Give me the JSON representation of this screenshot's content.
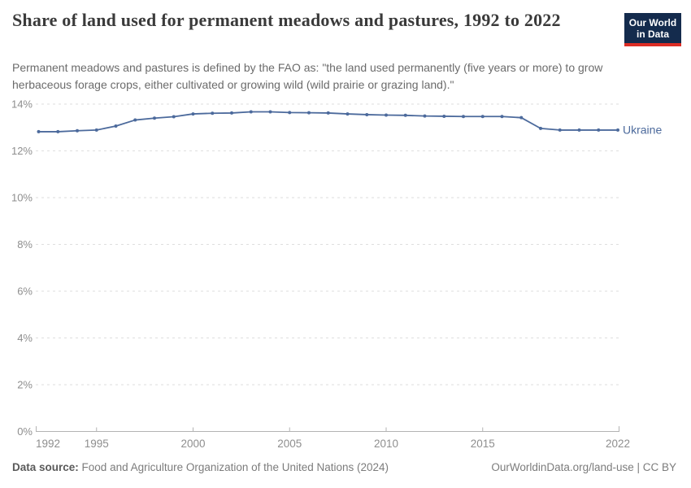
{
  "logo": {
    "line1": "Our World",
    "line2": "in Data",
    "bg_color": "#142b4d",
    "stripe_color": "#dc2d25"
  },
  "footer": {
    "datasource_label": "Data source:",
    "datasource_value": "Food and Agriculture Organization of the United Nations (2024)",
    "license": "OurWorldinData.org/land-use | CC BY"
  },
  "colors": {
    "series_blue": "#4c6a9c",
    "gridline": "#dedede",
    "axis_line": "#b3b3b3",
    "tick_label": "#8e8e8e",
    "title_text": "#3a3a3a",
    "subtitle_text": "#6b6b6b"
  },
  "chart_data": {
    "type": "line",
    "title": "Share of land used for permanent meadows and pastures, 1992 to 2022",
    "subtitle": "Permanent meadows and pastures is defined by the FAO as: \"the land used permanently (five years or more) to grow herbaceous forage crops, either cultivated or growing wild (wild prairie or grazing land).\"",
    "xlabel": "",
    "ylabel": "",
    "ylim": [
      0,
      14
    ],
    "xlim": [
      1992,
      2022
    ],
    "grid": "horizontal-dashed",
    "legend": "line-end-label",
    "x": [
      1992,
      1993,
      1994,
      1995,
      1996,
      1997,
      1998,
      1999,
      2000,
      2001,
      2002,
      2003,
      2004,
      2005,
      2006,
      2007,
      2008,
      2009,
      2010,
      2011,
      2012,
      2013,
      2014,
      2015,
      2016,
      2017,
      2018,
      2019,
      2020,
      2021,
      2022
    ],
    "series": [
      {
        "name": "Ukraine",
        "color": "#4c6a9c",
        "unit": "%",
        "values": [
          12.82,
          12.82,
          12.86,
          12.89,
          13.06,
          13.32,
          13.4,
          13.46,
          13.58,
          13.61,
          13.62,
          13.67,
          13.67,
          13.64,
          13.63,
          13.62,
          13.58,
          13.55,
          13.53,
          13.52,
          13.49,
          13.48,
          13.47,
          13.47,
          13.47,
          13.42,
          12.96,
          12.89,
          12.89,
          12.89,
          12.89
        ]
      }
    ],
    "y_ticks": [
      {
        "value": 0,
        "label": "0%"
      },
      {
        "value": 2,
        "label": "2%"
      },
      {
        "value": 4,
        "label": "4%"
      },
      {
        "value": 6,
        "label": "6%"
      },
      {
        "value": 8,
        "label": "8%"
      },
      {
        "value": 10,
        "label": "10%"
      },
      {
        "value": 12,
        "label": "12%"
      },
      {
        "value": 14,
        "label": "14%"
      }
    ],
    "x_ticks": [
      {
        "value": 1992,
        "label": "1992"
      },
      {
        "value": 1995,
        "label": "1995"
      },
      {
        "value": 2000,
        "label": "2000"
      },
      {
        "value": 2005,
        "label": "2005"
      },
      {
        "value": 2010,
        "label": "2010"
      },
      {
        "value": 2015,
        "label": "2015"
      },
      {
        "value": 2022,
        "label": "2022"
      }
    ]
  }
}
